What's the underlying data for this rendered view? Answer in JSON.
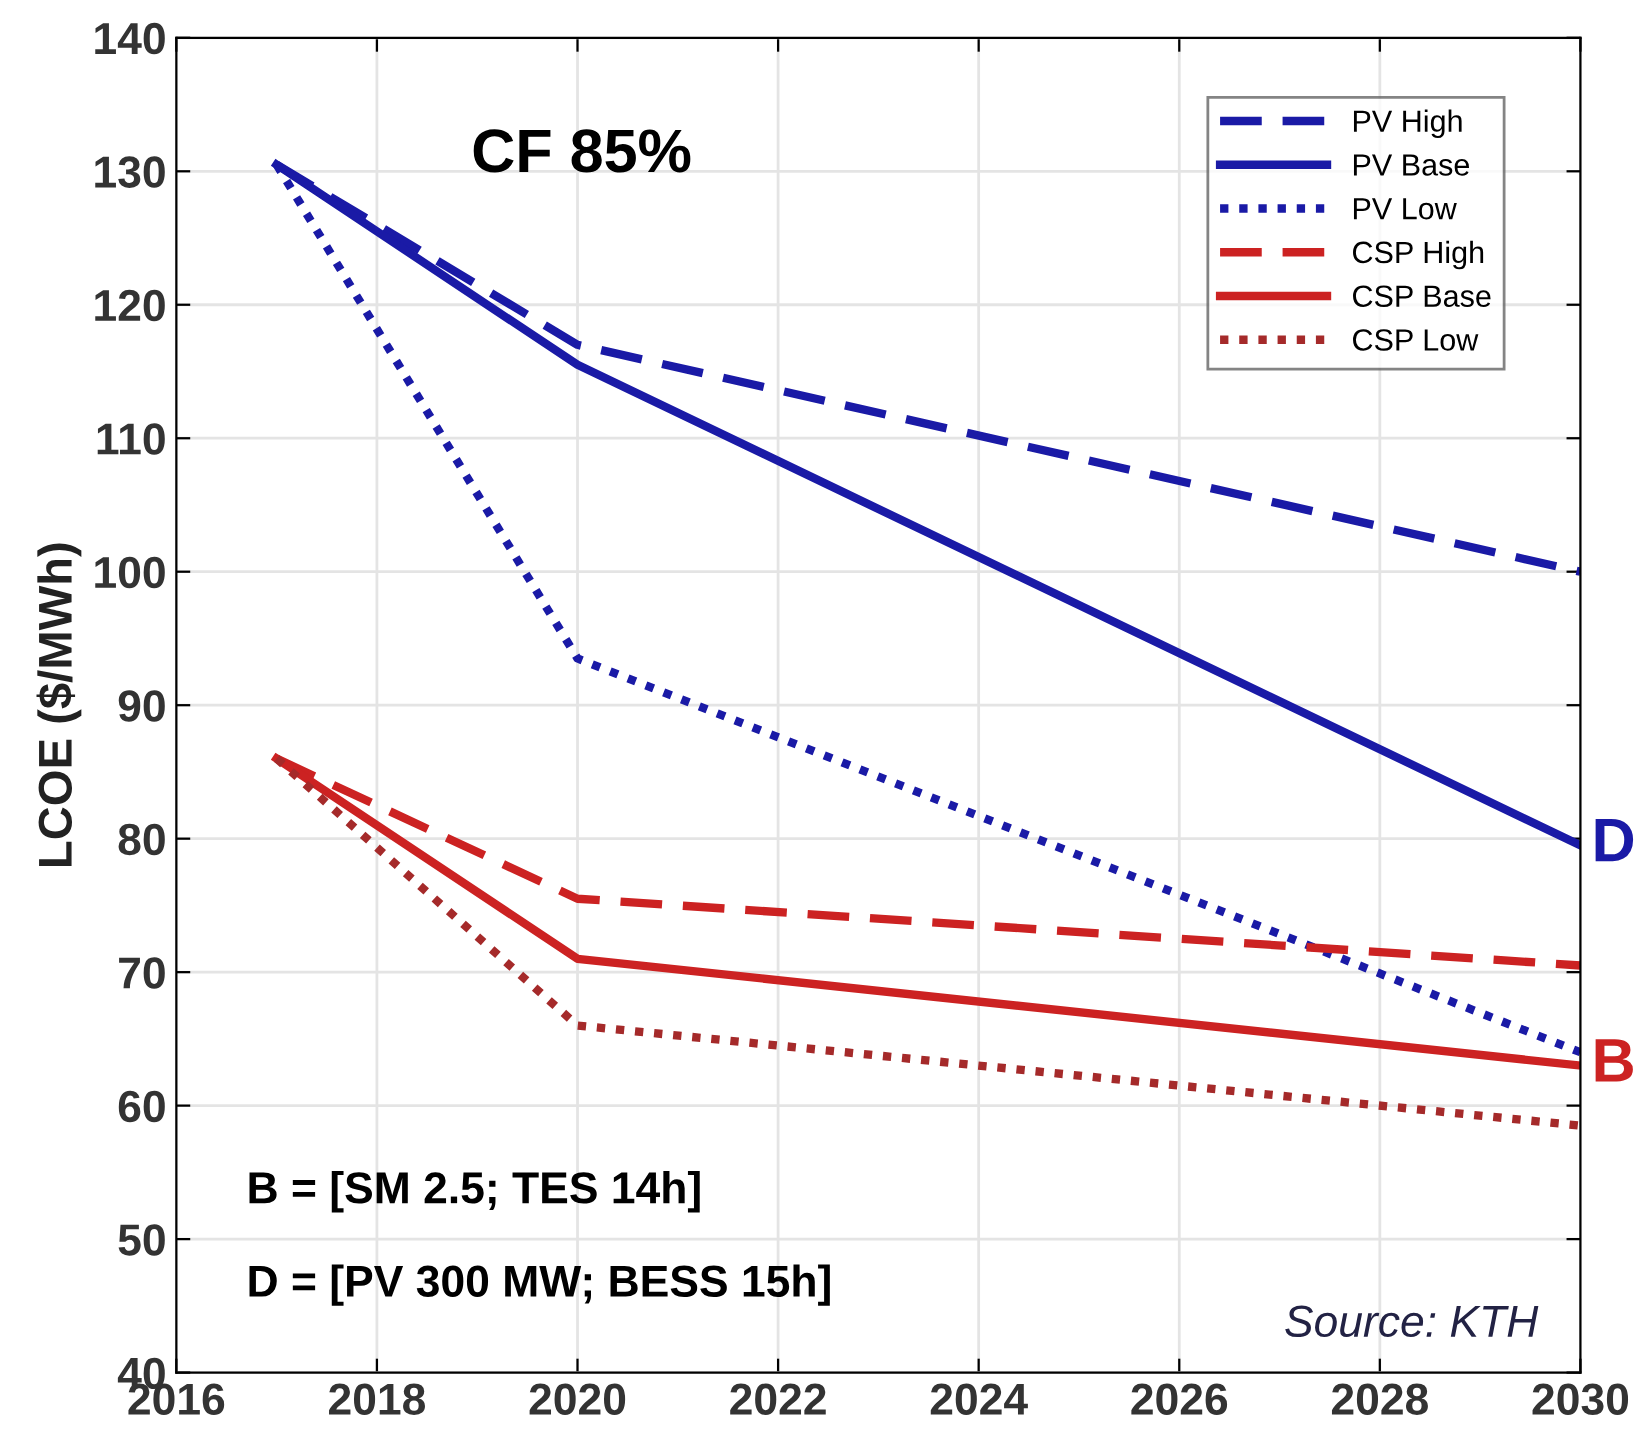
{
  "chart_data": {
    "type": "line",
    "ylabel": "LCOE ($/MWh)",
    "x": [
      2017,
      2020,
      2030
    ],
    "series": [
      {
        "name": "PV High",
        "color": "#1a1aa6",
        "line_style": "dashed",
        "values": [
          130.5,
          117,
          100
        ]
      },
      {
        "name": "PV Base",
        "color": "#1a1aa6",
        "line_style": "solid",
        "values": [
          130.5,
          115.5,
          79.5
        ]
      },
      {
        "name": "PV Low",
        "color": "#1a1aa6",
        "line_style": "dotted",
        "values": [
          130.5,
          93.5,
          64
        ]
      },
      {
        "name": "CSP High",
        "color": "#cc2222",
        "line_style": "dashed",
        "values": [
          86,
          75.5,
          70.5
        ]
      },
      {
        "name": "CSP Base",
        "color": "#cc2222",
        "line_style": "solid",
        "values": [
          86,
          71,
          63
        ]
      },
      {
        "name": "CSP Low",
        "color": "#a52a2a",
        "line_style": "dotted",
        "values": [
          86,
          66,
          58.5
        ]
      }
    ],
    "xlim": [
      2016,
      2030
    ],
    "xticks": [
      2016,
      2018,
      2020,
      2022,
      2024,
      2026,
      2028,
      2030
    ],
    "ylim": [
      40,
      140
    ],
    "yticks": [
      40,
      50,
      60,
      70,
      80,
      90,
      100,
      110,
      120,
      130,
      140
    ],
    "grid": true,
    "legend": "top right",
    "marker": "none",
    "annotations": [
      "CF 85%",
      {
        "text": "D",
        "x": 2030,
        "y": 79.5
      },
      {
        "text": "B",
        "x": 2030,
        "y": 63
      },
      "B = [SM 2.5; TES 14h]",
      "D = [PV 300 MW; BESS 15h]",
      "Source: KTH"
    ]
  }
}
